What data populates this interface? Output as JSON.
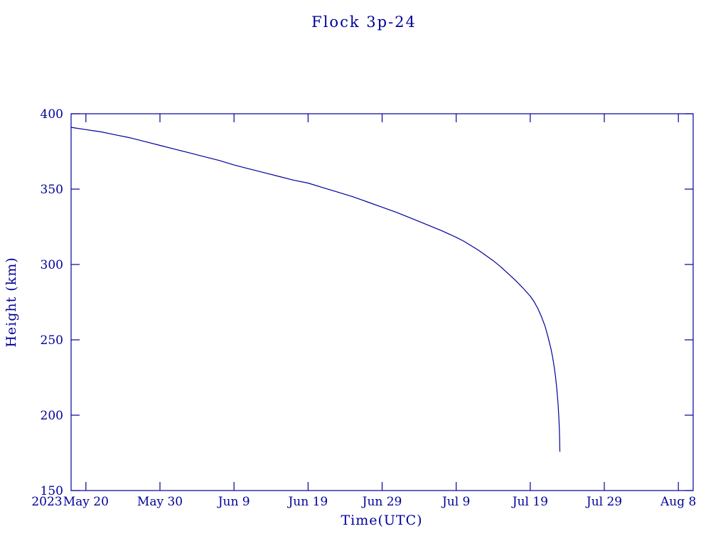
{
  "page": {
    "title": "Flock 3p-24"
  },
  "colors": {
    "ink": "#00009B",
    "line": "#00009B",
    "frame": "#00009B",
    "background": "#FFFFFF"
  },
  "chart_data": {
    "type": "line",
    "title": "Flock 3p-24",
    "xlabel": "Time(UTC)",
    "ylabel": "Height (km)",
    "grid": false,
    "legend": "none",
    "x_unit": "days since 2023 May 18",
    "xlim": [
      0,
      84
    ],
    "ylim": [
      150,
      400
    ],
    "x_ticks": [
      2,
      12,
      22,
      32,
      42,
      52,
      62,
      72,
      82
    ],
    "x_tick_labels": [
      "May 20",
      "May 30",
      "Jun 9",
      "Jun 19",
      "Jun 29",
      "Jul 9",
      "Jul 19",
      "Jul 29",
      "Aug 8"
    ],
    "year_label": "2023",
    "y_ticks": [
      150,
      200,
      250,
      300,
      350,
      400
    ],
    "y_tick_labels": [
      "150",
      "200",
      "250",
      "300",
      "350",
      "400"
    ],
    "series": [
      {
        "name": "Flock 3p-24 orbital height",
        "points": [
          [
            0,
            391
          ],
          [
            2,
            389.5
          ],
          [
            4,
            388
          ],
          [
            6,
            386
          ],
          [
            8,
            384
          ],
          [
            10,
            381.5
          ],
          [
            12,
            379
          ],
          [
            14,
            376.5
          ],
          [
            16,
            374
          ],
          [
            18,
            371.5
          ],
          [
            20,
            369
          ],
          [
            22,
            366
          ],
          [
            24,
            363.5
          ],
          [
            26,
            361
          ],
          [
            28,
            358.5
          ],
          [
            30,
            356
          ],
          [
            32,
            354
          ],
          [
            34,
            351
          ],
          [
            36,
            348
          ],
          [
            38,
            345
          ],
          [
            40,
            341.5
          ],
          [
            42,
            338
          ],
          [
            44,
            334.5
          ],
          [
            46,
            330.5
          ],
          [
            48,
            326.5
          ],
          [
            50,
            322.5
          ],
          [
            52,
            318
          ],
          [
            53,
            315.5
          ],
          [
            54,
            312.5
          ],
          [
            55,
            309.5
          ],
          [
            56,
            306
          ],
          [
            57,
            302.5
          ],
          [
            58,
            298.5
          ],
          [
            59,
            294
          ],
          [
            60,
            289.5
          ],
          [
            61,
            284.5
          ],
          [
            62,
            279
          ],
          [
            62.5,
            275.5
          ],
          [
            63,
            271
          ],
          [
            63.5,
            265.5
          ],
          [
            64,
            259
          ],
          [
            64.4,
            252
          ],
          [
            64.8,
            244
          ],
          [
            65,
            239
          ],
          [
            65.2,
            233
          ],
          [
            65.4,
            226
          ],
          [
            65.6,
            217
          ],
          [
            65.75,
            208
          ],
          [
            65.85,
            200
          ],
          [
            65.92,
            192
          ],
          [
            65.97,
            184
          ],
          [
            66,
            176
          ]
        ]
      }
    ]
  }
}
